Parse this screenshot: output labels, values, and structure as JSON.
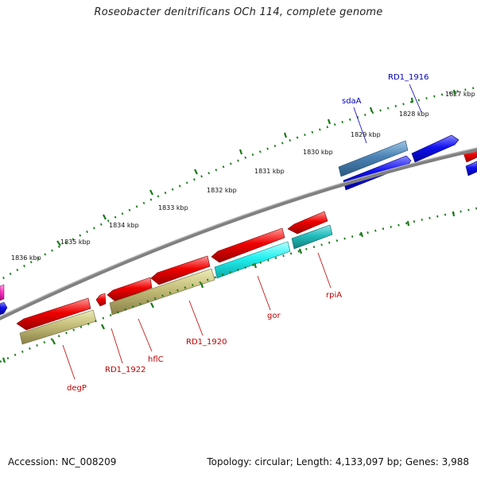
{
  "title": "Roseobacter denitrificans OCh 114, complete genome",
  "accession_text": "Accession: NC_008209",
  "summary_text": "Topology: circular; Length: 4,133,097 bp; Genes: 3,988",
  "kbp_labels": [
    "1827 kbp",
    "1828 kbp",
    "1829 kbp",
    "1830 kbp",
    "1831 kbp",
    "1832 kbp",
    "1833 kbp",
    "1834 kbp",
    "1835 kbp",
    "1836 kbp"
  ],
  "gene_labels": {
    "rd1_1916": "RD1_1916",
    "sdaA": "sdaA",
    "rpiA": "rpiA",
    "gor": "gor",
    "rd1_1920": "RD1_1920",
    "hflC": "hflC",
    "rd1_1922": "RD1_1922",
    "degP": "degP"
  },
  "colors": {
    "backbone": "#808080",
    "tick_dots": "#1a7a1a",
    "forward_gene": "#0000e0",
    "forward_gene_alt": "#4a82b4",
    "reverse_gene": "#e00000",
    "reverse_feature_cyan": "#1ee0e0",
    "reverse_feature_teal": "#20b8b8",
    "reverse_feature_olive": "#bdb76b",
    "forward_label": "#0000c0",
    "reverse_label": "#c00000",
    "pink_fragment": "#ff40c0"
  }
}
